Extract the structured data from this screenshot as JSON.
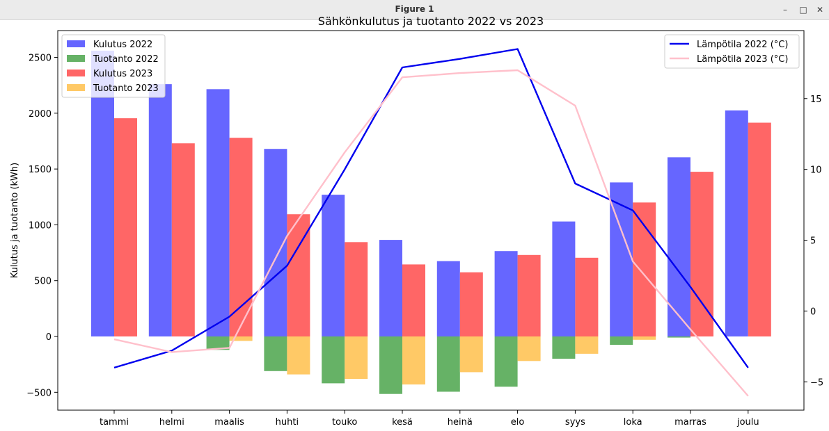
{
  "window": {
    "title": "Figure 1",
    "minimize_glyph": "–",
    "maximize_glyph": "□",
    "close_glyph": "✕"
  },
  "chart_data": {
    "type": "bar",
    "title": "Sähkönkulutus ja tuotanto 2022 vs 2023",
    "ylabel": "Kulutus ja tuotanto (kWh)",
    "xlabel": "",
    "y2label": "",
    "categories": [
      "tammi",
      "helmi",
      "maalis",
      "huhti",
      "touko",
      "kesä",
      "heinä",
      "elo",
      "syys",
      "loka",
      "marras",
      "joulu"
    ],
    "ylim": [
      -660,
      2740
    ],
    "y2lim": [
      -7.0,
      19.8
    ],
    "yticks": [
      -500,
      0,
      500,
      1000,
      1500,
      2000,
      2500
    ],
    "y2ticks": [
      -5,
      0,
      5,
      10,
      15
    ],
    "bar_series": [
      {
        "name": "Kulutus 2022",
        "color": "#6666ff",
        "values": [
          2560,
          2260,
          2215,
          1680,
          1270,
          865,
          675,
          765,
          1030,
          1380,
          1605,
          2025
        ]
      },
      {
        "name": "Tuotanto 2022",
        "color": "#66b266",
        "values": [
          0,
          0,
          -120,
          -310,
          -420,
          -515,
          -495,
          -450,
          -200,
          -75,
          -10,
          0
        ]
      },
      {
        "name": "Kulutus 2023",
        "color": "#ff6666",
        "values": [
          1955,
          1730,
          1780,
          1095,
          845,
          645,
          575,
          730,
          705,
          1200,
          1475,
          1915
        ]
      },
      {
        "name": "Tuotanto 2023",
        "color": "#ffc966",
        "values": [
          0,
          0,
          -40,
          -340,
          -380,
          -430,
          -320,
          -220,
          -155,
          -30,
          0,
          0
        ]
      }
    ],
    "line_series": [
      {
        "name": "Lämpötila 2022 (°C)",
        "color": "#0000ee",
        "values": [
          -4.0,
          -2.8,
          -0.4,
          3.2,
          10.0,
          17.2,
          17.8,
          18.5,
          9.0,
          7.1,
          1.7,
          -4.0
        ]
      },
      {
        "name": "Lämpötila 2023 (°C)",
        "color": "#ffc0cb",
        "values": [
          -2.0,
          -2.9,
          -2.6,
          5.3,
          11.2,
          16.5,
          16.8,
          17.0,
          14.5,
          3.5,
          -1.3,
          -6.0
        ]
      }
    ],
    "legend_left": "top-left",
    "legend_right": "top-right",
    "grid": false
  }
}
